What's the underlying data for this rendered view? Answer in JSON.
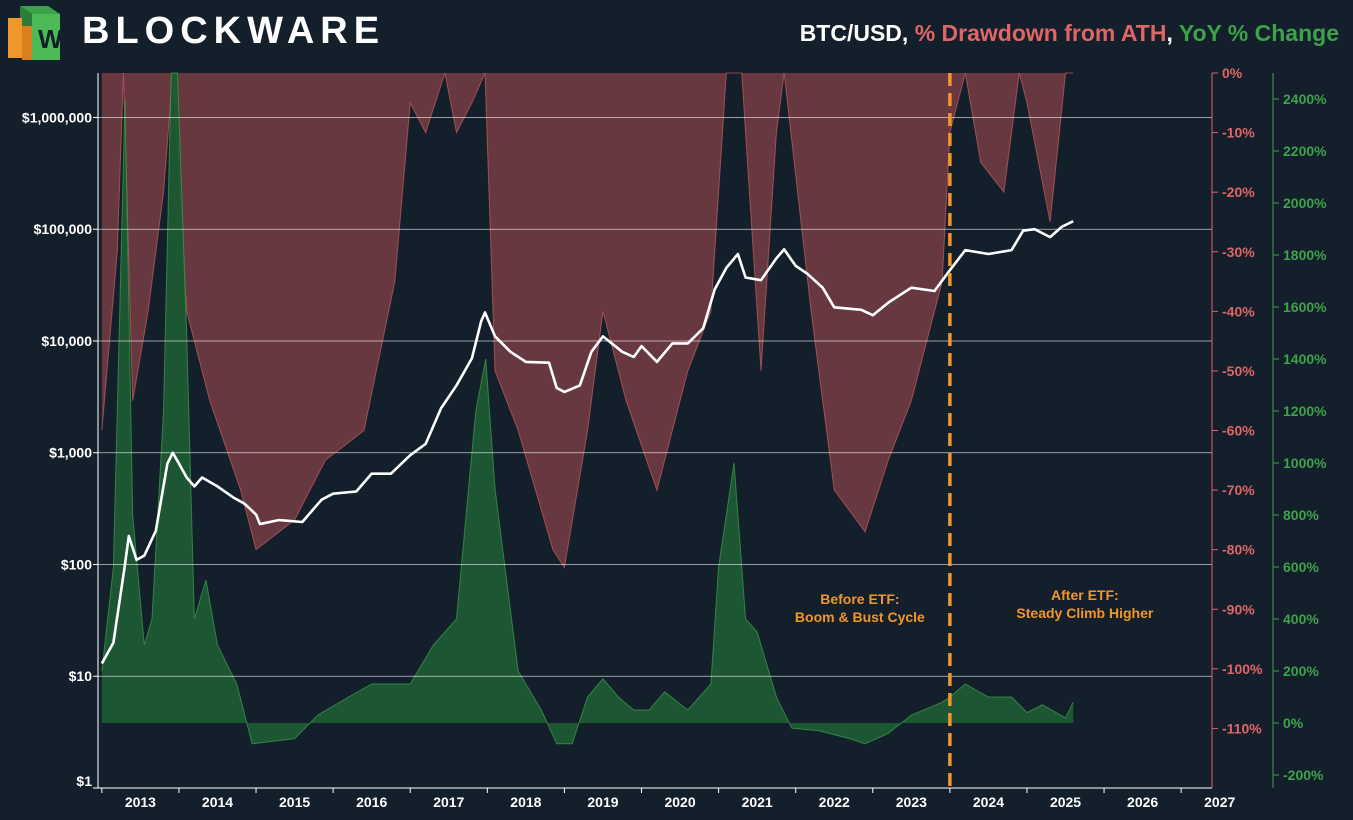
{
  "brand": {
    "name": "BLOCKWARE"
  },
  "title": {
    "part1": "BTC/USD",
    "sep1": ", ",
    "part2": "% Drawdown from ATH",
    "sep2": ", ",
    "part3": "YoY % Change"
  },
  "colors": {
    "background": "#13202c",
    "price": "#ffffff",
    "drawdown": "#e06565",
    "yoy": "#3ea24a",
    "etf_line": "#f0962a",
    "drawdown_fill": "#6b3a40",
    "yoy_fill": "#1e5a33"
  },
  "chart_data": {
    "type": "line",
    "title": "BTC/USD, % Drawdown from ATH, YoY % Change",
    "x_labels": [
      "2013",
      "2014",
      "2015",
      "2016",
      "2017",
      "2018",
      "2019",
      "2020",
      "2021",
      "2022",
      "2023",
      "2024",
      "2025",
      "2026",
      "2027"
    ],
    "x_range": [
      2012.95,
      2027.4
    ],
    "price_axis": {
      "scale": "log",
      "range": [
        1,
        2500000
      ],
      "ticks": [
        1,
        10,
        100,
        1000,
        10000,
        100000,
        1000000
      ],
      "labels": [
        "$1",
        "$10",
        "$100",
        "$1,000",
        "$10,000",
        "$100,000",
        "$1,000,000"
      ]
    },
    "drawdown_axis": {
      "range": [
        -120,
        0
      ],
      "ticks": [
        0,
        -10,
        -20,
        -30,
        -40,
        -50,
        -60,
        -70,
        -80,
        -90,
        -100,
        -110
      ],
      "labels": [
        "0%",
        "-10%",
        "-20%",
        "-30%",
        "-40%",
        "-50%",
        "-60%",
        "-70%",
        "-80%",
        "-90%",
        "-100%",
        "-110%"
      ]
    },
    "yoy_axis": {
      "range": [
        -250,
        2500
      ],
      "ticks": [
        2400,
        2200,
        2000,
        1800,
        1600,
        1400,
        1200,
        1000,
        800,
        600,
        400,
        200,
        0,
        -200
      ],
      "labels": [
        "2400%",
        "2200%",
        "2000%",
        "1800%",
        "1600%",
        "1400%",
        "1200%",
        "1000%",
        "800%",
        "600%",
        "400%",
        "200%",
        "0%",
        "-200%"
      ]
    },
    "series": [
      {
        "name": "BTC/USD",
        "axis": "price",
        "x": [
          2013.0,
          2013.15,
          2013.3,
          2013.35,
          2013.45,
          2013.55,
          2013.7,
          2013.85,
          2013.92,
          2014.0,
          2014.1,
          2014.2,
          2014.3,
          2014.5,
          2014.7,
          2014.85,
          2015.0,
          2015.05,
          2015.3,
          2015.6,
          2015.85,
          2016.0,
          2016.3,
          2016.5,
          2016.75,
          2017.0,
          2017.2,
          2017.4,
          2017.6,
          2017.8,
          2017.92,
          2017.97,
          2018.1,
          2018.3,
          2018.5,
          2018.8,
          2018.9,
          2019.0,
          2019.2,
          2019.35,
          2019.5,
          2019.75,
          2019.9,
          2020.0,
          2020.2,
          2020.4,
          2020.6,
          2020.8,
          2020.95,
          2021.1,
          2021.25,
          2021.35,
          2021.55,
          2021.75,
          2021.85,
          2022.0,
          2022.15,
          2022.35,
          2022.5,
          2022.85,
          2023.0,
          2023.2,
          2023.5,
          2023.8,
          2024.0,
          2024.2,
          2024.5,
          2024.8,
          2024.95,
          2025.1,
          2025.3,
          2025.45,
          2025.6
        ],
        "values": [
          13,
          20,
          100,
          180,
          110,
          120,
          200,
          800,
          1000,
          800,
          600,
          500,
          600,
          500,
          400,
          350,
          280,
          230,
          250,
          240,
          380,
          430,
          450,
          650,
          650,
          950,
          1200,
          2500,
          4000,
          7000,
          15000,
          18000,
          11000,
          8000,
          6500,
          6400,
          3800,
          3500,
          4000,
          8000,
          11000,
          8000,
          7200,
          9000,
          6500,
          9500,
          9500,
          13000,
          29000,
          45000,
          60000,
          37000,
          35000,
          55000,
          66000,
          47000,
          40000,
          30000,
          20000,
          19000,
          17000,
          22000,
          30000,
          28000,
          43000,
          65000,
          60000,
          65000,
          97000,
          100000,
          85000,
          105000,
          118000
        ]
      },
      {
        "name": "% Drawdown from ATH",
        "axis": "drawdown",
        "x": [
          2013.0,
          2013.2,
          2013.28,
          2013.4,
          2013.6,
          2013.8,
          2013.92,
          2014.1,
          2014.4,
          2014.8,
          2015.0,
          2015.5,
          2015.9,
          2016.4,
          2016.8,
          2017.0,
          2017.2,
          2017.45,
          2017.6,
          2017.8,
          2017.97,
          2018.1,
          2018.4,
          2018.85,
          2019.0,
          2019.3,
          2019.5,
          2019.8,
          2020.2,
          2020.6,
          2020.9,
          2021.1,
          2021.3,
          2021.55,
          2021.75,
          2021.85,
          2022.2,
          2022.5,
          2022.9,
          2023.2,
          2023.5,
          2023.9,
          2024.0,
          2024.2,
          2024.4,
          2024.7,
          2024.9,
          2025.0,
          2025.3,
          2025.5,
          2025.6
        ],
        "values": [
          -60,
          -30,
          0,
          -55,
          -40,
          -20,
          0,
          -40,
          -55,
          -70,
          -80,
          -75,
          -65,
          -60,
          -35,
          -5,
          -10,
          0,
          -10,
          -5,
          0,
          -50,
          -60,
          -80,
          -83,
          -60,
          -40,
          -55,
          -70,
          -50,
          -40,
          0,
          0,
          -50,
          -10,
          0,
          -40,
          -70,
          -77,
          -65,
          -55,
          -35,
          -10,
          0,
          -15,
          -20,
          0,
          -5,
          -25,
          0,
          0
        ]
      },
      {
        "name": "YoY % Change",
        "axis": "yoy",
        "x": [
          2013.0,
          2013.15,
          2013.3,
          2013.4,
          2013.55,
          2013.65,
          2013.8,
          2013.9,
          2013.98,
          2014.1,
          2014.2,
          2014.35,
          2014.5,
          2014.75,
          2014.95,
          2015.5,
          2015.8,
          2016.2,
          2016.5,
          2016.8,
          2017.0,
          2017.3,
          2017.6,
          2017.85,
          2017.98,
          2018.1,
          2018.4,
          2018.7,
          2018.9,
          2019.1,
          2019.3,
          2019.5,
          2019.7,
          2019.9,
          2020.1,
          2020.3,
          2020.6,
          2020.9,
          2021.0,
          2021.2,
          2021.35,
          2021.5,
          2021.75,
          2021.95,
          2022.3,
          2022.7,
          2022.9,
          2023.2,
          2023.5,
          2023.9,
          2024.0,
          2024.2,
          2024.5,
          2024.8,
          2025.0,
          2025.2,
          2025.5,
          2025.6
        ],
        "values": [
          200,
          600,
          2400,
          800,
          300,
          400,
          1200,
          2500,
          2500,
          1500,
          400,
          550,
          300,
          150,
          -80,
          -60,
          30,
          100,
          150,
          150,
          150,
          300,
          400,
          1200,
          1400,
          900,
          200,
          50,
          -80,
          -80,
          100,
          170,
          100,
          50,
          50,
          120,
          50,
          150,
          600,
          1000,
          400,
          350,
          100,
          -20,
          -30,
          -60,
          -80,
          -40,
          30,
          80,
          100,
          150,
          100,
          100,
          40,
          70,
          20,
          80
        ]
      }
    ],
    "annotations": [
      {
        "x": 2024.0,
        "label_lines": [
          "Before ETF:",
          "Boom & Bust Cycle"
        ]
      },
      {
        "x": 2024.0,
        "label_lines": [
          "After ETF:",
          "Steady Climb Higher"
        ]
      }
    ]
  }
}
